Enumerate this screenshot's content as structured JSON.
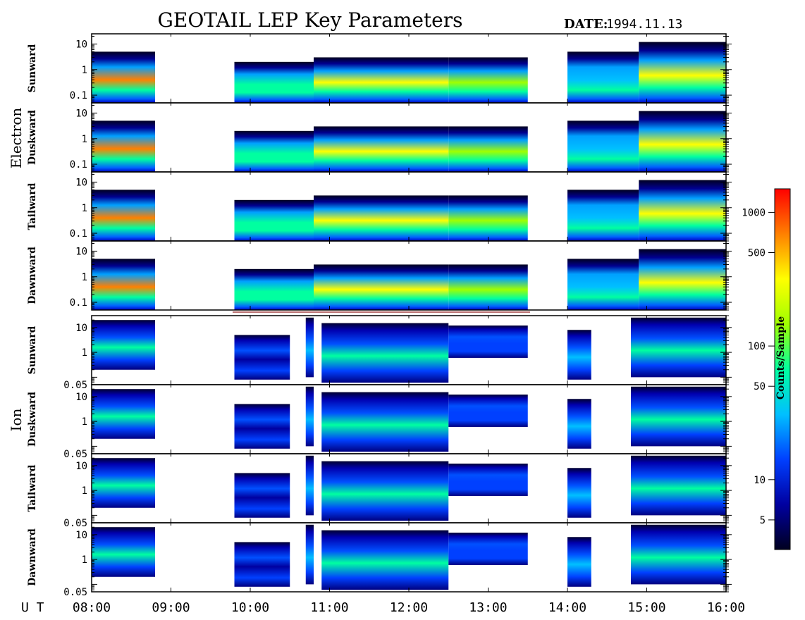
{
  "title": "GEOTAIL LEP Key Parameters",
  "date_label": "DATE:",
  "date_value": "1994.11.13",
  "time_axis_prefix": "U T",
  "colorbar": {
    "label": "Counts/Sample",
    "scale": "log",
    "range": [
      3,
      1500
    ],
    "ticks": [
      "1000",
      "500",
      "100",
      "50",
      "10",
      "5"
    ],
    "tick_values": [
      1000,
      500,
      100,
      50,
      10,
      5
    ],
    "colors": [
      "#000020",
      "#0000a0",
      "#0040ff",
      "#00c0ff",
      "#00ffa0",
      "#a0ff00",
      "#ffff00",
      "#ff8000",
      "#ff0000"
    ]
  },
  "groups": [
    {
      "name": "Electron",
      "key": "electron"
    },
    {
      "name": "Ion",
      "key": "ion"
    }
  ],
  "chart_data": {
    "type": "heatmap",
    "x_axis": {
      "range": [
        "08:00",
        "16:00"
      ],
      "ticks": [
        "08:00",
        "09:00",
        "10:00",
        "11:00",
        "12:00",
        "13:00",
        "14:00",
        "15:00",
        "16:00"
      ],
      "tick_hours": [
        8,
        9,
        10,
        11,
        12,
        13,
        14,
        15,
        16
      ]
    },
    "data_gaps_hours": [
      [
        8.8,
        9.8
      ],
      [
        13.5,
        14.0
      ]
    ],
    "panels": [
      {
        "group": "electron",
        "label": "Sunward",
        "y_scale": "log",
        "ylim": [
          0.05,
          25
        ],
        "y_ticks": [
          "10",
          "1",
          "0.1"
        ],
        "y_tick_values": [
          10,
          1,
          0.1
        ]
      },
      {
        "group": "electron",
        "label": "Duskward",
        "y_scale": "log",
        "ylim": [
          0.05,
          25
        ],
        "y_ticks": [
          "10",
          "1",
          "0.1"
        ],
        "y_tick_values": [
          10,
          1,
          0.1
        ]
      },
      {
        "group": "electron",
        "label": "Tailward",
        "y_scale": "log",
        "ylim": [
          0.05,
          25
        ],
        "y_ticks": [
          "10",
          "1",
          "0.1"
        ],
        "y_tick_values": [
          10,
          1,
          0.1
        ]
      },
      {
        "group": "electron",
        "label": "Dawnward",
        "y_scale": "log",
        "ylim": [
          0.05,
          25
        ],
        "y_ticks": [
          "10",
          "1",
          "0.1"
        ],
        "y_tick_values": [
          10,
          1,
          0.1
        ]
      },
      {
        "group": "ion",
        "label": "Sunward",
        "y_scale": "log",
        "ylim": [
          0.05,
          30
        ],
        "y_ticks": [
          "10",
          "1",
          "0.05"
        ],
        "y_tick_values": [
          10,
          1,
          0.05
        ]
      },
      {
        "group": "ion",
        "label": "Duskward",
        "y_scale": "log",
        "ylim": [
          0.05,
          30
        ],
        "y_ticks": [
          "10",
          "1",
          "0.05"
        ],
        "y_tick_values": [
          10,
          1,
          0.05
        ]
      },
      {
        "group": "ion",
        "label": "Tailward",
        "y_scale": "log",
        "ylim": [
          0.05,
          30
        ],
        "y_ticks": [
          "10",
          "1",
          "0.05"
        ],
        "y_tick_values": [
          10,
          1,
          0.05
        ]
      },
      {
        "group": "ion",
        "label": "Dawnward",
        "y_scale": "log",
        "ylim": [
          0.05,
          30
        ],
        "y_ticks": [
          "10",
          "1",
          "0.05"
        ],
        "y_tick_values": [
          10,
          1,
          0.05
        ]
      }
    ],
    "electron_segments": [
      {
        "t0": 8.0,
        "t1": 8.8,
        "ytop": 5,
        "ybot": 0.05,
        "peak": "#ff8000"
      },
      {
        "t0": 9.8,
        "t1": 10.8,
        "ytop": 2,
        "ybot": 0.05,
        "peak": "#00ffa0"
      },
      {
        "t0": 10.8,
        "t1": 12.5,
        "ytop": 3,
        "ybot": 0.05,
        "peak": "#ffff00"
      },
      {
        "t0": 12.5,
        "t1": 13.5,
        "ytop": 3,
        "ybot": 0.05,
        "peak": "#a0ff00"
      },
      {
        "t0": 14.0,
        "t1": 14.9,
        "ytop": 5,
        "ybot": 0.05,
        "peak": "#00c0ff"
      },
      {
        "t0": 14.9,
        "t1": 16.0,
        "ytop": 12,
        "ybot": 0.05,
        "peak": "#ffff00"
      }
    ],
    "ion_segments": [
      {
        "t0": 8.0,
        "t1": 8.8,
        "ytop": 20,
        "ybot": 0.2,
        "peak": "#00ffa0"
      },
      {
        "t0": 9.8,
        "t1": 10.5,
        "ytop": 5,
        "ybot": 0.08,
        "peak": "#0000a0"
      },
      {
        "t0": 10.7,
        "t1": 10.8,
        "ytop": 25,
        "ybot": 0.1,
        "peak": "#00c0ff"
      },
      {
        "t0": 10.9,
        "t1": 12.5,
        "ytop": 15,
        "ybot": 0.06,
        "peak": "#00ffa0"
      },
      {
        "t0": 12.5,
        "t1": 13.5,
        "ytop": 12,
        "ybot": 0.6,
        "peak": "#0040ff"
      },
      {
        "t0": 14.0,
        "t1": 14.3,
        "ytop": 8,
        "ybot": 0.08,
        "peak": "#00c0ff"
      },
      {
        "t0": 14.8,
        "t1": 16.0,
        "ytop": 25,
        "ybot": 0.1,
        "peak": "#00ffa0"
      }
    ]
  }
}
